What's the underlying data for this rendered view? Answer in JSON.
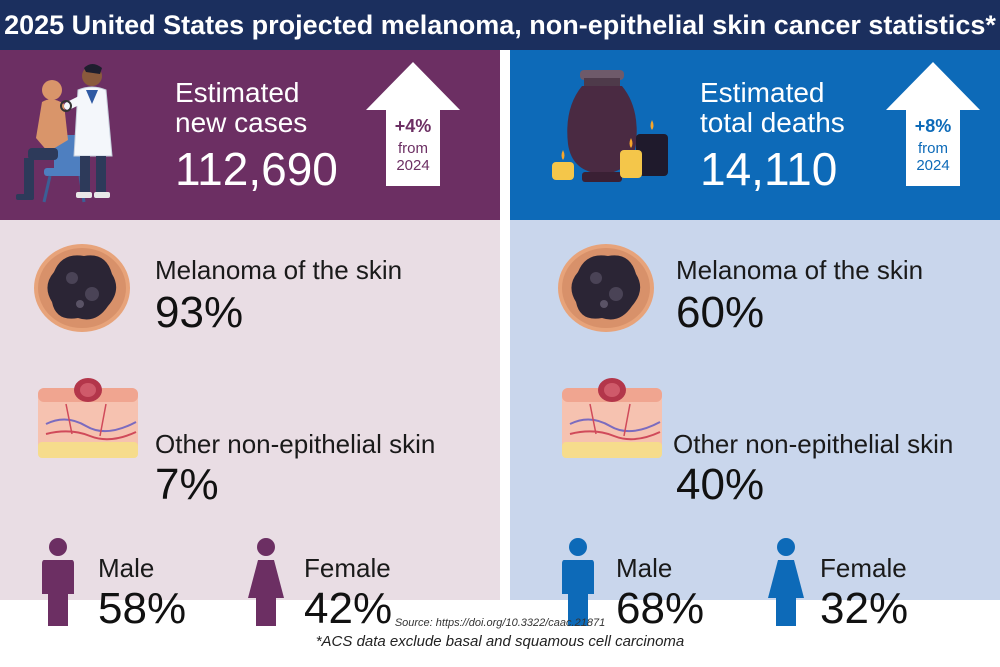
{
  "title": "2025 United States projected melanoma, non-epithelial skin cancer statistics*",
  "colors": {
    "title_bg": "#1b2f5e",
    "left_top": "#6c2f63",
    "left_bottom": "#e9dde4",
    "right_top": "#0d6ab8",
    "right_bottom": "#c9d6ec"
  },
  "cases": {
    "label_line1": "Estimated",
    "label_line2": "new cases",
    "value": "112,690",
    "change": "+4%",
    "change_from_line1": "from",
    "change_from_line2": "2024",
    "melanoma_label": "Melanoma of the skin",
    "melanoma_pct": "93%",
    "other_label": "Other non-epithelial skin",
    "other_pct": "7%",
    "male_label": "Male",
    "male_pct": "58%",
    "female_label": "Female",
    "female_pct": "42%"
  },
  "deaths": {
    "label_line1": "Estimated",
    "label_line2": "total deaths",
    "value": "14,110",
    "change": "+8%",
    "change_from_line1": "from",
    "change_from_line2": "2024",
    "melanoma_label": "Melanoma of the skin",
    "melanoma_pct": "60%",
    "other_label": "Other non-epithelial skin",
    "other_pct": "40%",
    "male_label": "Male",
    "male_pct": "68%",
    "female_label": "Female",
    "female_pct": "32%"
  },
  "icons": {
    "doctor": "doctor-examining-patient-icon",
    "urn": "urn-with-candles-icon",
    "melanoma": "melanoma-lesion-icon",
    "skin": "skin-cross-section-icon",
    "male": "male-person-icon",
    "female": "female-person-icon",
    "arrow": "up-arrow-icon"
  },
  "footer": {
    "source": "Source: https://doi.org/10.3322/caac.21871",
    "note": "*ACS data exclude basal and squamous cell carcinoma"
  }
}
